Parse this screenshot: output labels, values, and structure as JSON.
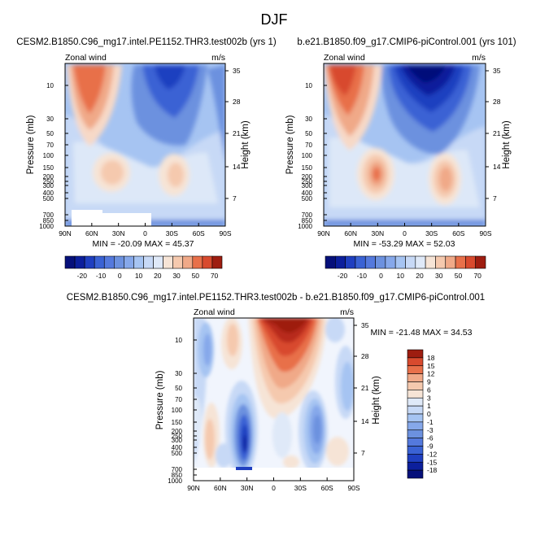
{
  "figure": {
    "title": "DJF"
  },
  "chart_data": [
    {
      "type": "contour",
      "title": "CESM2.B1850.C96_mg17.intel.PE1152.THR3.test002b (yrs 1)",
      "left_label": "Zonal wind",
      "right_label": "m/s",
      "xlabel": "",
      "ylabel": "Pressure (mb)",
      "y2label": "Height (km)",
      "x_tick_labels": [
        "90N",
        "60N",
        "30N",
        "0",
        "30S",
        "60S",
        "90S"
      ],
      "y_tick_labels": [
        "10",
        "30",
        "50",
        "70",
        "100",
        "150",
        "200",
        "250",
        "300",
        "400",
        "500",
        "700",
        "850",
        "1000"
      ],
      "y2_tick_labels": [
        "35",
        "28",
        "21",
        "14",
        "7"
      ],
      "stats": "MIN = -20.09   MAX = 45.37",
      "min": -20.09,
      "max": 45.37,
      "colorbar_ticks": [
        "-20",
        "-10",
        "0",
        "10",
        "20",
        "30",
        "50",
        "70"
      ]
    },
    {
      "type": "contour",
      "title": "b.e21.B1850.f09_g17.CMIP6-piControl.001 (yrs 101)",
      "left_label": "Zonal wind",
      "right_label": "m/s",
      "xlabel": "",
      "ylabel": "Pressure (mb)",
      "y2label": "Height (km)",
      "x_tick_labels": [
        "90N",
        "60N",
        "30N",
        "0",
        "30S",
        "60S",
        "90S"
      ],
      "y_tick_labels": [
        "10",
        "30",
        "50",
        "70",
        "100",
        "150",
        "200",
        "250",
        "300",
        "400",
        "500",
        "700",
        "850",
        "1000"
      ],
      "y2_tick_labels": [
        "35",
        "28",
        "21",
        "14",
        "7"
      ],
      "stats": "MIN = -53.29   MAX = 52.03",
      "min": -53.29,
      "max": 52.03,
      "colorbar_ticks": [
        "-20",
        "-10",
        "0",
        "10",
        "20",
        "30",
        "50",
        "70"
      ]
    },
    {
      "type": "contour",
      "title": "CESM2.B1850.C96_mg17.intel.PE1152.THR3.test002b - b.e21.B1850.f09_g17.CMIP6-piControl.001",
      "left_label": "Zonal wind",
      "right_label": "m/s",
      "xlabel": "",
      "ylabel": "Pressure (mb)",
      "y2label": "Height (km)",
      "x_tick_labels": [
        "90N",
        "60N",
        "30N",
        "0",
        "30S",
        "60S",
        "90S"
      ],
      "y_tick_labels": [
        "10",
        "30",
        "50",
        "70",
        "100",
        "150",
        "200",
        "250",
        "300",
        "400",
        "500",
        "700",
        "850",
        "1000"
      ],
      "y2_tick_labels": [
        "35",
        "28",
        "21",
        "14",
        "7"
      ],
      "stats": "MIN = -21.48   MAX = 34.53",
      "min": -21.48,
      "max": 34.53,
      "colorbar_ticks": [
        "18",
        "15",
        "12",
        "9",
        "6",
        "3",
        "1",
        "0",
        "-1",
        "-3",
        "-6",
        "-9",
        "-12",
        "-15",
        "-18"
      ]
    }
  ]
}
